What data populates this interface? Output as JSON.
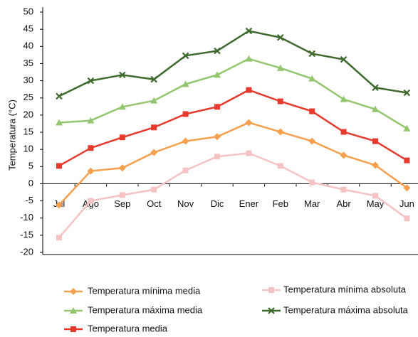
{
  "chart_data": {
    "type": "line",
    "y_label": "Temperatura (°C)",
    "categories": [
      "Jul",
      "Ago",
      "Sep",
      "Oct",
      "Nov",
      "Dic",
      "Ener",
      "Feb",
      "Mar",
      "Abr",
      "May",
      "Jun"
    ],
    "ylim": [
      -20,
      50
    ],
    "yticks": [
      50,
      45,
      40,
      35,
      30,
      25,
      20,
      15,
      10,
      5,
      0,
      -5,
      -10,
      -15,
      -20
    ],
    "series": [
      {
        "name": "Temperatura mínima media",
        "color": "#f5a04e",
        "marker": "diamond",
        "values": [
          -6.2,
          3.7,
          4.6,
          9.1,
          12.4,
          13.7,
          17.8,
          15.1,
          12.4,
          8.3,
          5.4,
          -1.2
        ]
      },
      {
        "name": "Temperatura máxima media",
        "color": "#93c66e",
        "marker": "triangle",
        "values": [
          17.8,
          18.4,
          22.4,
          24.2,
          29,
          31.7,
          36.4,
          33.7,
          30.6,
          24.6,
          21.7,
          16.1
        ]
      },
      {
        "name": "Temperatura media",
        "color": "#e53a2d",
        "marker": "square",
        "values": [
          5.2,
          10.4,
          13.5,
          16.4,
          20.3,
          22.4,
          27.3,
          24,
          21.1,
          15.1,
          12.4,
          6.8
        ]
      },
      {
        "name": "Temperatura mínima absoluta",
        "color": "#f5c3c3",
        "marker": "square",
        "values": [
          -15.7,
          -5,
          -3.3,
          -1.7,
          3.9,
          7.9,
          8.9,
          5.2,
          0.4,
          -1.7,
          -3.5,
          -10.1
        ]
      },
      {
        "name": "Temperatura máxima absoluta",
        "color": "#3f6a2d",
        "marker": "x",
        "values": [
          25.5,
          30,
          31.7,
          30.4,
          37.3,
          38.7,
          44.5,
          42.6,
          37.9,
          36.2,
          28,
          26.5
        ]
      }
    ]
  }
}
